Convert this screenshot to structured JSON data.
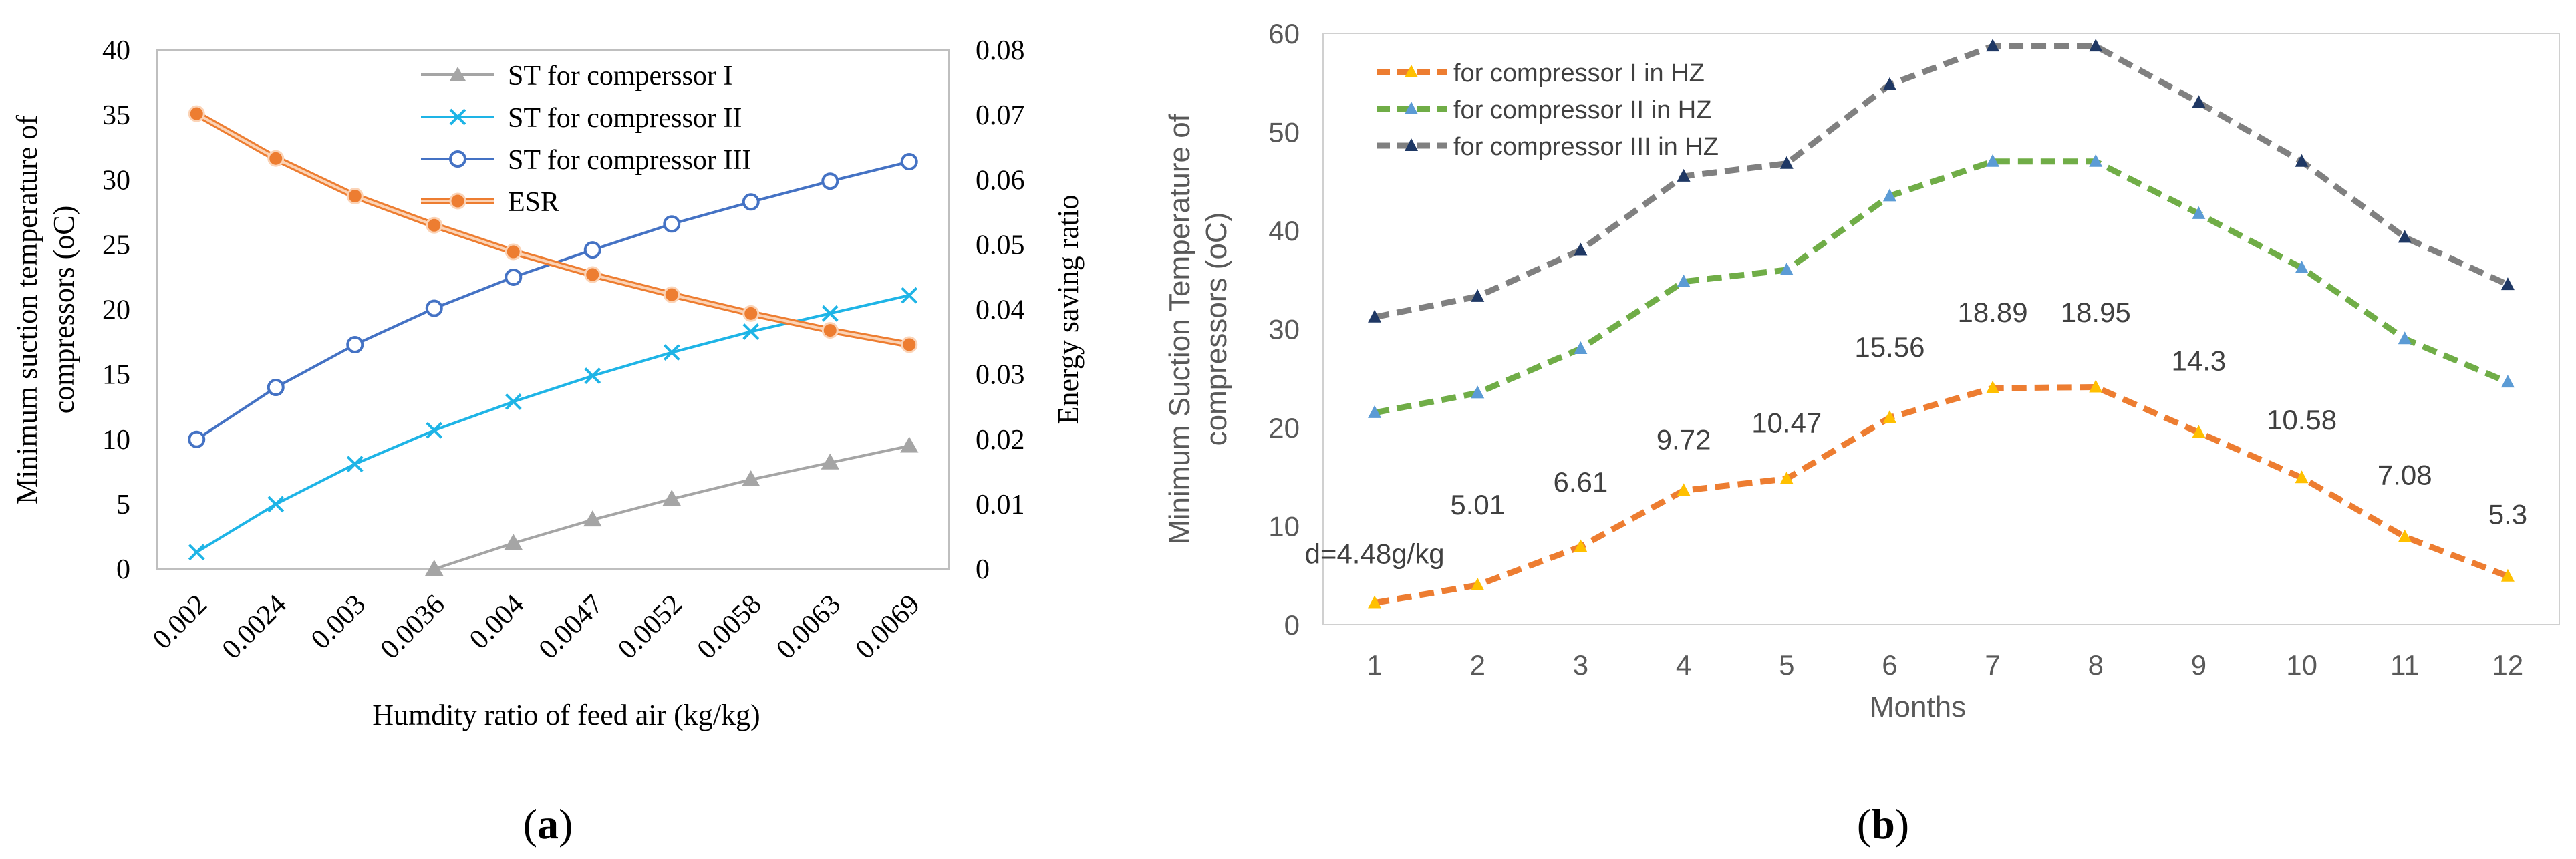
{
  "chart_data": [
    {
      "id": "a",
      "type": "line",
      "panel_label": "(a)",
      "xlabel": "Humdity ratio of feed air (kg/kg)",
      "ylabel": "Minimum suction temperature of compressors (°C)",
      "ylabel_lines": [
        "Minimum suction temperature of",
        "compressors (oC)"
      ],
      "y2label": "Energy saving ratio",
      "categories": [
        "0.002",
        "0.0024",
        "0.003",
        "0.0036",
        "0.004",
        "0.0047",
        "0.0052",
        "0.0058",
        "0.0063",
        "0.0069"
      ],
      "ylim": [
        0,
        40
      ],
      "yticks": [
        0,
        5,
        10,
        15,
        20,
        25,
        30,
        35,
        40
      ],
      "y2lim": [
        0,
        0.08
      ],
      "y2ticks": [
        "0",
        "0.01",
        "0.02",
        "0.03",
        "0.04",
        "0.05",
        "0.06",
        "0.07",
        "0.08"
      ],
      "legend_position": "top-right",
      "series": [
        {
          "name": "ST for comperssor I",
          "axis": "left",
          "marker": "triangle",
          "color": "#a5a5a5",
          "values": [
            null,
            null,
            null,
            0.0,
            2.0,
            3.8,
            5.4,
            6.9,
            8.2,
            9.5
          ]
        },
        {
          "name": "ST for compressor II",
          "axis": "left",
          "marker": "x",
          "color": "#1eb4e6",
          "values": [
            1.3,
            5.0,
            8.1,
            10.7,
            12.9,
            14.9,
            16.7,
            18.3,
            19.7,
            21.1
          ]
        },
        {
          "name": "ST for compressor III",
          "axis": "left",
          "marker": "circle",
          "color": "#4472c4",
          "values": [
            10.0,
            14.0,
            17.3,
            20.1,
            22.5,
            24.6,
            26.6,
            28.3,
            29.9,
            31.4
          ]
        },
        {
          "name": "ESR",
          "axis": "right",
          "marker": "circle-filled",
          "color": "#ed7d31",
          "values": [
            0.0702,
            0.0633,
            0.0575,
            0.053,
            0.0489,
            0.0454,
            0.0423,
            0.0394,
            0.0368,
            0.0346
          ]
        }
      ]
    },
    {
      "id": "b",
      "type": "line",
      "panel_label": "(b)",
      "xlabel": "Months",
      "ylabel": "Minimum Suction Temperature of compressors (°C)",
      "ylabel_lines": [
        "Minimum Suction Temperature of",
        "compressors (oC)"
      ],
      "categories": [
        "1",
        "2",
        "3",
        "4",
        "5",
        "6",
        "7",
        "8",
        "9",
        "10",
        "11",
        "12"
      ],
      "ylim": [
        0,
        60
      ],
      "yticks": [
        0,
        10,
        20,
        30,
        40,
        50,
        60
      ],
      "legend_position": "top-left",
      "series": [
        {
          "name": "for compressor I in HZ",
          "color": "#ed7d31",
          "marker_color": "#ffc000",
          "values": [
            2.2,
            4.0,
            7.9,
            13.6,
            14.8,
            21.0,
            24.0,
            24.1,
            19.5,
            14.9,
            8.9,
            4.9
          ]
        },
        {
          "name": "for compressor II in HZ",
          "color": "#70ad47",
          "marker_color": "#5b9bd5",
          "values": [
            21.5,
            23.5,
            28.0,
            34.8,
            36.0,
            43.5,
            47.0,
            47.0,
            41.7,
            36.2,
            29.0,
            24.6
          ]
        },
        {
          "name": "for compressor III in HZ",
          "color": "#808080",
          "marker_color": "#1f3864",
          "values": [
            31.2,
            33.3,
            38.0,
            45.5,
            46.8,
            54.8,
            58.7,
            58.7,
            53.0,
            47.0,
            39.3,
            34.5
          ]
        }
      ],
      "annotations": [
        {
          "text": "d=4.48g/kg",
          "month": 1,
          "y": 6.2
        },
        {
          "text": "5.01",
          "month": 2,
          "y": 11.2
        },
        {
          "text": "6.61",
          "month": 3,
          "y": 13.5
        },
        {
          "text": "9.72",
          "month": 4,
          "y": 17.8
        },
        {
          "text": "10.47",
          "month": 5,
          "y": 19.5
        },
        {
          "text": "15.56",
          "month": 6,
          "y": 27.2
        },
        {
          "text": "18.89",
          "month": 7,
          "y": 30.7
        },
        {
          "text": "18.95",
          "month": 8,
          "y": 30.7
        },
        {
          "text": "14.3",
          "month": 9,
          "y": 25.8
        },
        {
          "text": "10.58",
          "month": 10,
          "y": 19.8
        },
        {
          "text": "7.08",
          "month": 11,
          "y": 14.2
        },
        {
          "text": "5.3",
          "month": 12,
          "y": 10.2
        }
      ]
    }
  ]
}
